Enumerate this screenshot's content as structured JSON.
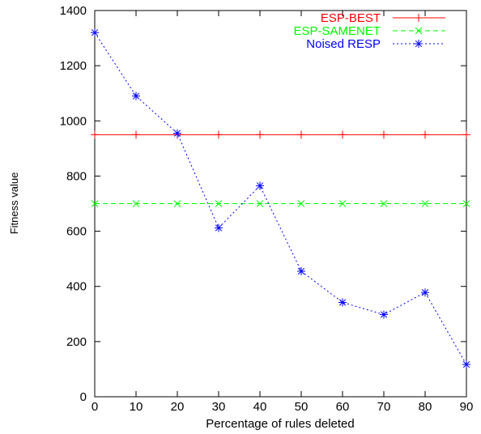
{
  "chart_data": {
    "type": "line",
    "title": "",
    "xlabel": "Percentage of rules deleted",
    "ylabel": "Fitness value",
    "xlim": [
      0,
      90
    ],
    "ylim": [
      0,
      1400
    ],
    "xticks": [
      0,
      10,
      20,
      30,
      40,
      50,
      60,
      70,
      80,
      90
    ],
    "yticks": [
      0,
      200,
      400,
      600,
      800,
      1000,
      1200,
      1400
    ],
    "grid": false,
    "legend_position": "top-right",
    "x": [
      0,
      10,
      20,
      30,
      40,
      50,
      60,
      70,
      80,
      90
    ],
    "series": [
      {
        "name": "ESP-BEST",
        "color": "#ff0000",
        "dash": "solid",
        "marker": "plus",
        "values": [
          950,
          950,
          950,
          950,
          950,
          950,
          950,
          950,
          950,
          950
        ]
      },
      {
        "name": "ESP-SAMENET",
        "color": "#00ff00",
        "dash": "dashed",
        "marker": "cross",
        "values": [
          700,
          700,
          700,
          700,
          700,
          700,
          700,
          700,
          700,
          700
        ]
      },
      {
        "name": "Noised RESP",
        "color": "#0000ff",
        "dash": "dotted",
        "marker": "star",
        "values": [
          1320,
          1090,
          955,
          612,
          765,
          455,
          342,
          298,
          378,
          117
        ]
      }
    ]
  }
}
